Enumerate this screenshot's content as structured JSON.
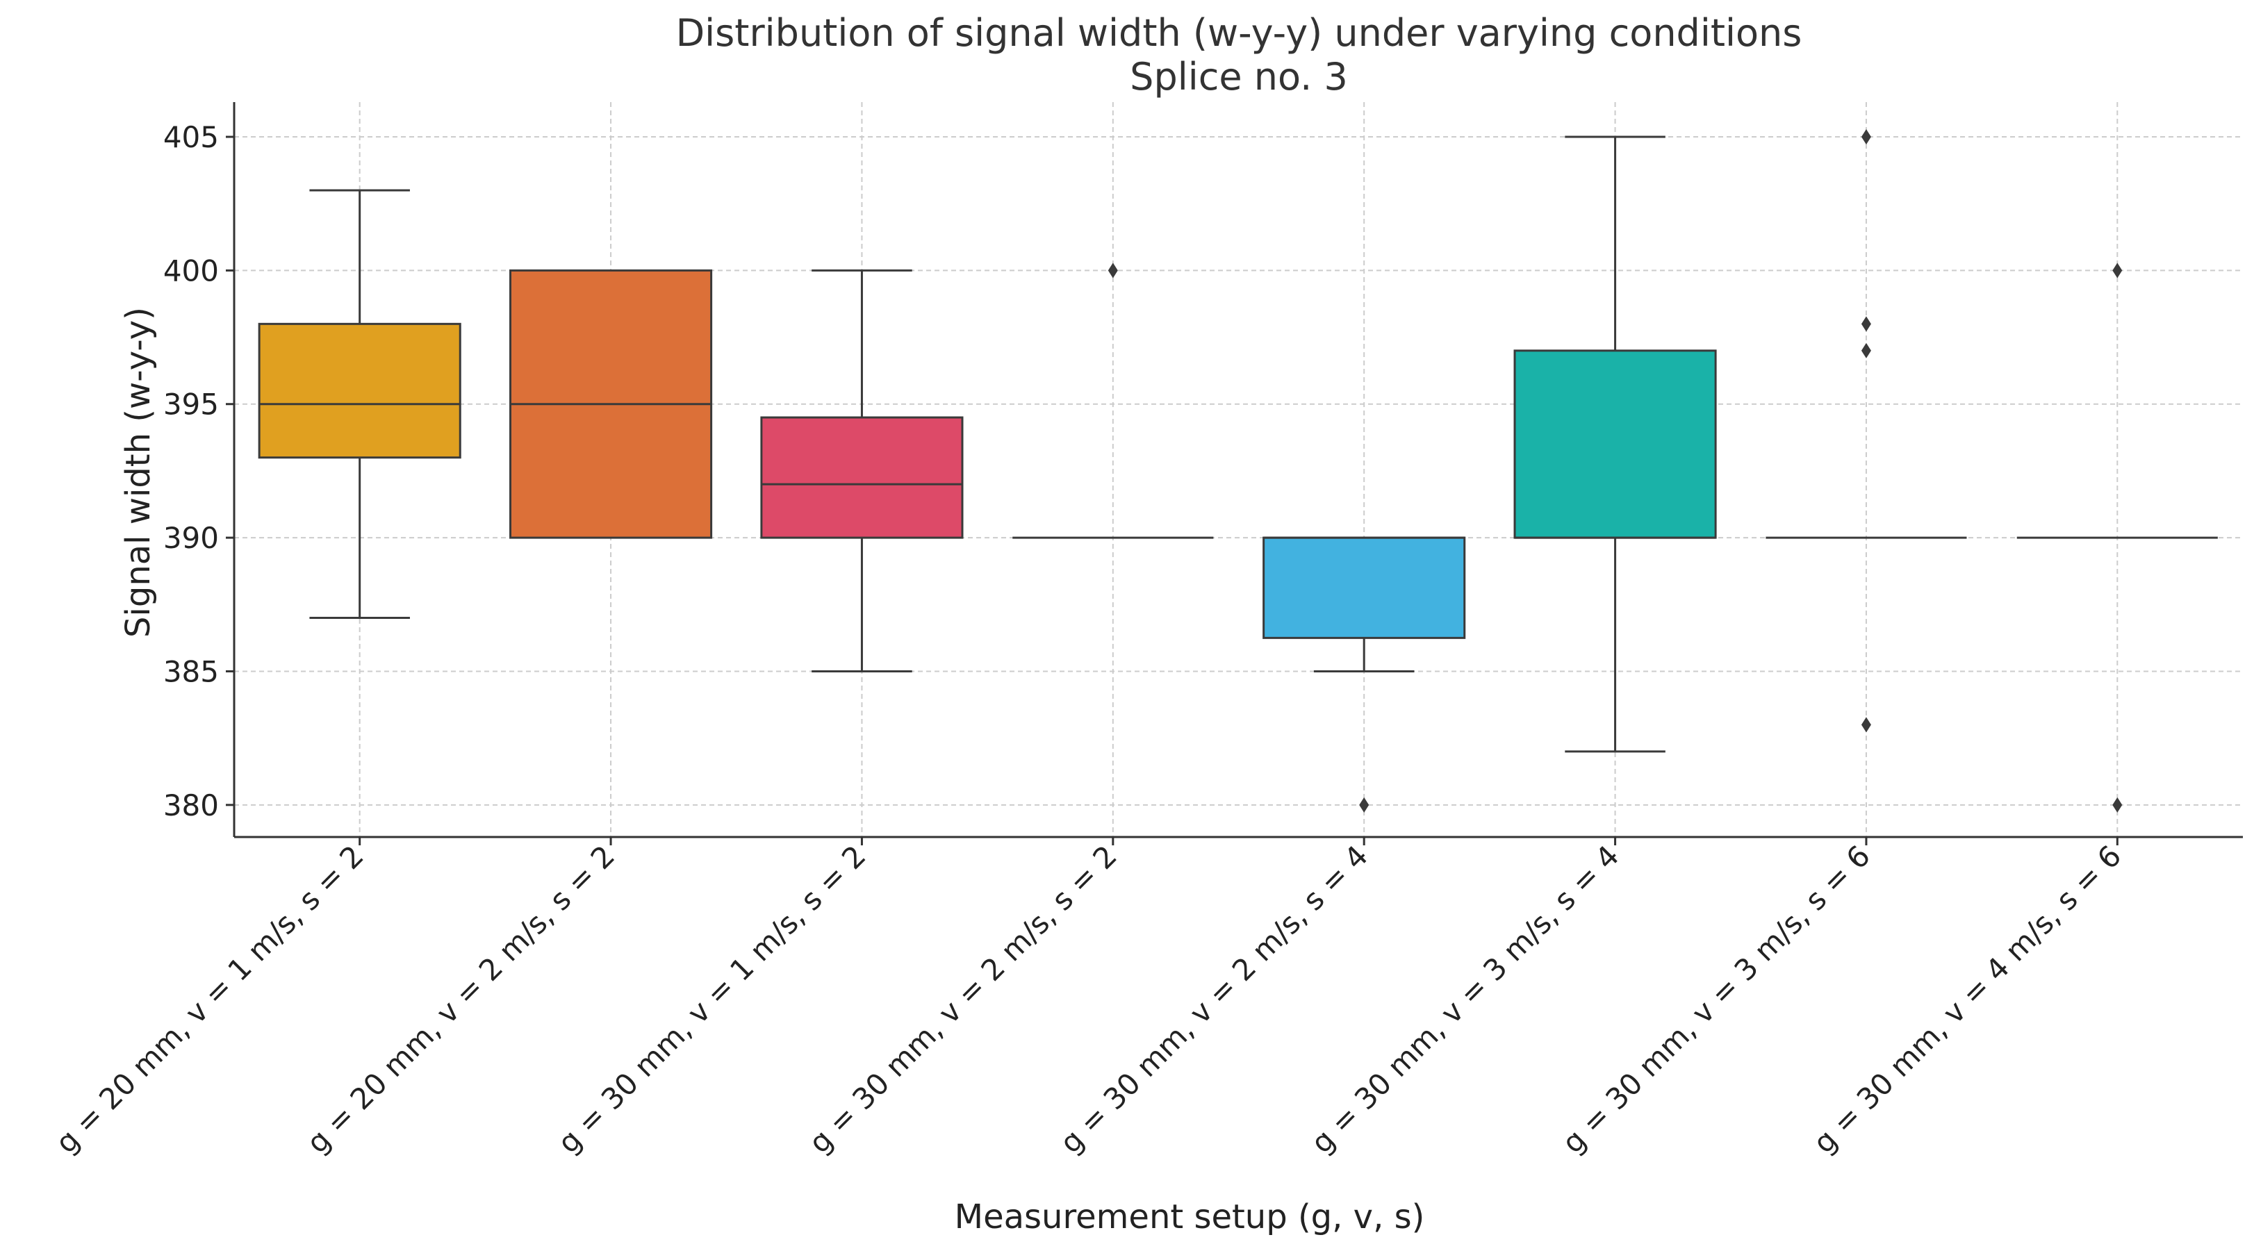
{
  "chart_data": {
    "type": "box",
    "title": "Distribution of signal width (w-y-y) under varying conditions",
    "subtitle": "Splice no. 3",
    "xlabel": "Measurement setup (g, v, s)",
    "ylabel": "Signal width (w-y-y)",
    "ylim": [
      378.8,
      406.3
    ],
    "yticks": [
      380,
      385,
      390,
      395,
      400,
      405
    ],
    "grid": true,
    "categories": [
      "g = 20 mm, v = 1 m/s, s = 2",
      "g = 20 mm, v = 2 m/s, s = 2",
      "g = 30 mm, v = 1 m/s, s = 2",
      "g = 30 mm, v = 2 m/s, s = 2",
      "g = 30 mm, v = 2 m/s, s = 4",
      "g = 30 mm, v = 3 m/s, s = 4",
      "g = 30 mm, v = 3 m/s, s = 6",
      "g = 30 mm, v = 4 m/s, s = 6"
    ],
    "boxes": [
      {
        "whisker_low": 387,
        "q1": 393,
        "median": 395,
        "q3": 398,
        "whisker_high": 403,
        "outliers": [],
        "color": "#E0A020"
      },
      {
        "whisker_low": 390,
        "q1": 390,
        "median": 395,
        "q3": 400,
        "whisker_high": 400,
        "outliers": [],
        "color": "#DC7038"
      },
      {
        "whisker_low": 385,
        "q1": 390,
        "median": 392,
        "q3": 394.5,
        "whisker_high": 400,
        "outliers": [],
        "color": "#DD4A68"
      },
      {
        "whisker_low": 390,
        "q1": 390,
        "median": 390,
        "q3": 390,
        "whisker_high": 390,
        "outliers": [
          400
        ],
        "color": "#9B59B6"
      },
      {
        "whisker_low": 385,
        "q1": 386.25,
        "median": 390,
        "q3": 390,
        "whisker_high": 390,
        "outliers": [
          380
        ],
        "color": "#42B2E0"
      },
      {
        "whisker_low": 382,
        "q1": 390,
        "median": 390,
        "q3": 397,
        "whisker_high": 405,
        "outliers": [],
        "color": "#1AB2A8"
      },
      {
        "whisker_low": 390,
        "q1": 390,
        "median": 390,
        "q3": 390,
        "whisker_high": 390,
        "outliers": [
          405,
          398,
          397,
          383
        ],
        "color": "#2E86C1"
      },
      {
        "whisker_low": 390,
        "q1": 390,
        "median": 390,
        "q3": 390,
        "whisker_high": 390,
        "outliers": [
          400,
          380
        ],
        "color": "#27AE60"
      }
    ]
  }
}
